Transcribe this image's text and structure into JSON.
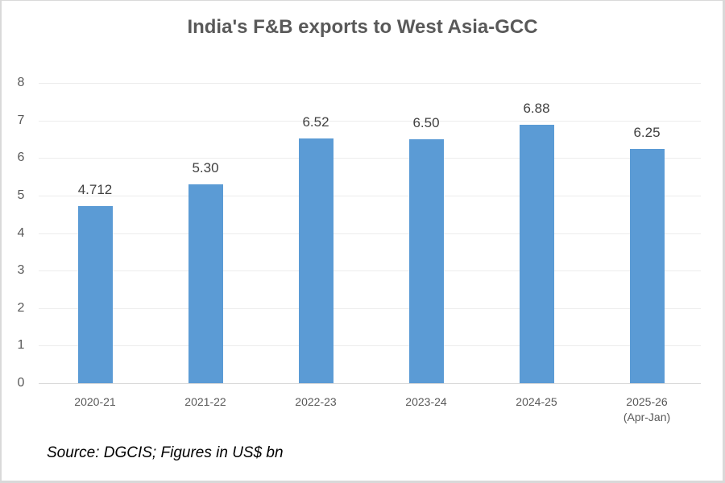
{
  "title": "India's F&B exports to West Asia-GCC",
  "source_note": "Source: DGCIS; Figures in US$ bn",
  "y_ticks": [
    "0",
    "1",
    "2",
    "3",
    "4",
    "5",
    "6",
    "7",
    "8"
  ],
  "bars": [
    {
      "category": "2020-21",
      "sub": "",
      "value": 4.712,
      "label": "4.712"
    },
    {
      "category": "2021-22",
      "sub": "",
      "value": 5.3,
      "label": "5.30"
    },
    {
      "category": "2022-23",
      "sub": "",
      "value": 6.52,
      "label": "6.52"
    },
    {
      "category": "2023-24",
      "sub": "",
      "value": 6.5,
      "label": "6.50"
    },
    {
      "category": "2024-25",
      "sub": "",
      "value": 6.88,
      "label": "6.88"
    },
    {
      "category": "2025-26",
      "sub": "(Apr-Jan)",
      "value": 6.25,
      "label": "6.25"
    }
  ],
  "colors": {
    "bar": "#5b9bd5",
    "title": "#595959",
    "grid": "#ececec"
  },
  "chart_data": {
    "type": "bar",
    "title": "India's F&B exports to West Asia-GCC",
    "categories": [
      "2020-21",
      "2021-22",
      "2022-23",
      "2023-24",
      "2024-25",
      "2025-26 (Apr-Jan)"
    ],
    "values": [
      4.712,
      5.3,
      6.52,
      6.5,
      6.88,
      6.25
    ],
    "data_labels": [
      "4.712",
      "5.30",
      "6.52",
      "6.50",
      "6.88",
      "6.25"
    ],
    "xlabel": "",
    "ylabel": "",
    "ylim": [
      0,
      8
    ],
    "y_ticks": [
      0,
      1,
      2,
      3,
      4,
      5,
      6,
      7,
      8
    ],
    "grid": true,
    "legend": "none",
    "annotation": "Source: DGCIS; Figures in US$ bn",
    "units": "US$ bn"
  }
}
